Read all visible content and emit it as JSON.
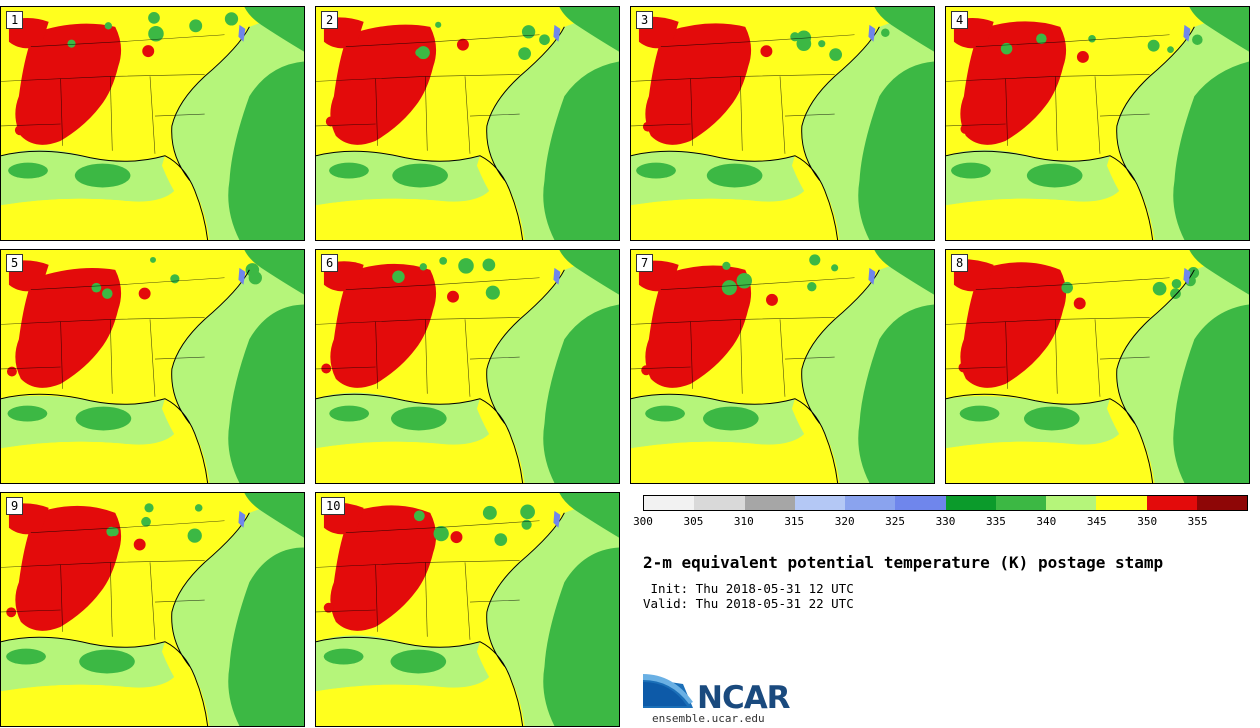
{
  "title": "2-m equivalent potential temperature (K) postage stamp",
  "init": " Init: Thu 2018-05-31 12 UTC",
  "valid": "Valid: Thu 2018-05-31 22 UTC",
  "members": [
    "1",
    "2",
    "3",
    "4",
    "5",
    "6",
    "7",
    "8",
    "9",
    "10"
  ],
  "colorbar": {
    "ticks": [
      "300",
      "305",
      "310",
      "315",
      "320",
      "325",
      "330",
      "335",
      "340",
      "345",
      "350",
      "355"
    ],
    "colors": [
      "#f2f2f2",
      "#d9d9d9",
      "#a6a6a6",
      "#b4c8f5",
      "#8aa3ee",
      "#6f86ec",
      "#0b9b2b",
      "#3cb844",
      "#b5f57a",
      "#ffff1e",
      "#e30b0b",
      "#8e0606"
    ]
  },
  "logo": {
    "name": "NCAR",
    "url": "ensemble.ucar.edu"
  }
}
